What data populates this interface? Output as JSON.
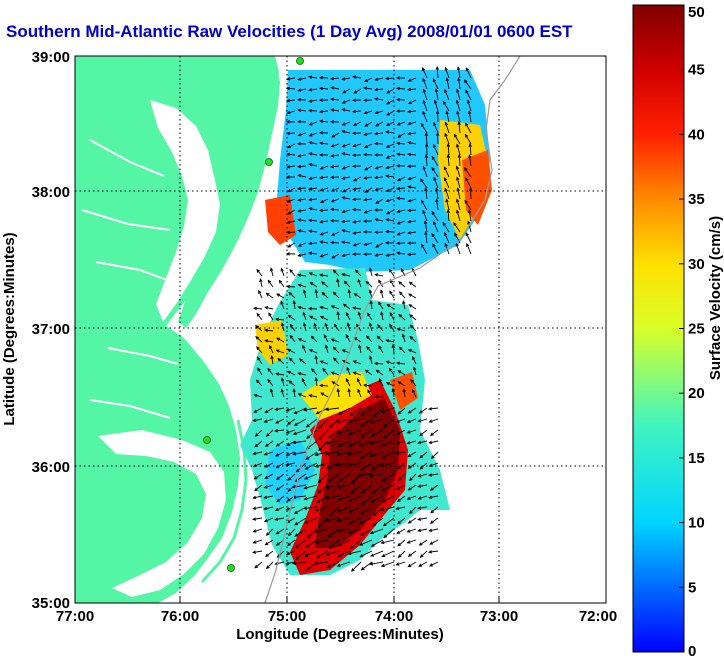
{
  "title": "Southern Mid-Atlantic Raw Velocities (1 Day Avg) 2008/01/01 0600 EST",
  "map": {
    "xlabel": "Longitude (Degrees:Minutes)",
    "ylabel": "Latitude (Degrees:Minutes)",
    "x_ticks": [
      "77:00",
      "76:00",
      "75:00",
      "74:00",
      "73:00",
      "72:00"
    ],
    "y_ticks": [
      "39:00",
      "38:00",
      "37:00",
      "36:00",
      "35:00"
    ],
    "land_color": "#55f5a6",
    "grid": "dotted"
  },
  "colorbar": {
    "label": "Surface Velocity (cm/s)",
    "ticks": [
      "50",
      "45",
      "40",
      "35",
      "30",
      "25",
      "20",
      "15",
      "10",
      "5",
      "0"
    ],
    "range": [
      0,
      50
    ]
  },
  "chart_data": {
    "type": "vector-map",
    "xlim": [
      "77:00 W",
      "72:00 W"
    ],
    "ylim": [
      "35:00 N",
      "39:00 N"
    ],
    "stations": [
      {
        "lon": "74:51",
        "lat": "39:00"
      },
      {
        "lon": "75:08",
        "lat": "38:13"
      },
      {
        "lon": "75:43",
        "lat": "36:10"
      },
      {
        "lon": "75:29",
        "lat": "35:15"
      }
    ]
  }
}
